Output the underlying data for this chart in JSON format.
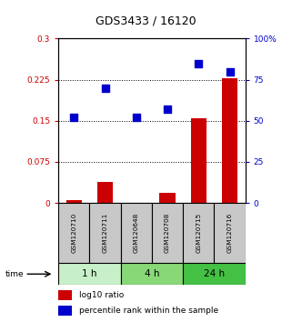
{
  "title": "GDS3433 / 16120",
  "samples": [
    "GSM120710",
    "GSM120711",
    "GSM120648",
    "GSM120708",
    "GSM120715",
    "GSM120716"
  ],
  "groups": [
    {
      "label": "1 h",
      "indices": [
        0,
        1
      ]
    },
    {
      "label": "4 h",
      "indices": [
        2,
        3
      ]
    },
    {
      "label": "24 h",
      "indices": [
        4,
        5
      ]
    }
  ],
  "group_colors": [
    "#c8f0c8",
    "#88d878",
    "#44c044"
  ],
  "log10_ratio": [
    0.005,
    0.038,
    -0.005,
    0.018,
    0.155,
    0.228
  ],
  "percentile_rank": [
    52,
    70,
    52,
    57,
    85,
    80
  ],
  "left_ylim": [
    0,
    0.3
  ],
  "right_ylim": [
    0,
    100
  ],
  "left_yticks": [
    0,
    0.075,
    0.15,
    0.225,
    0.3
  ],
  "right_yticks": [
    0,
    25,
    50,
    75,
    100
  ],
  "left_ytick_labels": [
    "0",
    "0.075",
    "0.15",
    "0.225",
    "0.3"
  ],
  "right_ytick_labels": [
    "0",
    "25",
    "50",
    "75",
    "100%"
  ],
  "hlines": [
    0.075,
    0.15,
    0.225
  ],
  "bar_color": "#cc0000",
  "dot_color": "#0000cc",
  "bar_width": 0.5,
  "dot_size": 28,
  "left_label_color": "#cc0000",
  "right_label_color": "#0000cc",
  "title_color": "#000000",
  "legend_bar_label": "log10 ratio",
  "legend_dot_label": "percentile rank within the sample",
  "sample_box_color": "#c8c8c8"
}
